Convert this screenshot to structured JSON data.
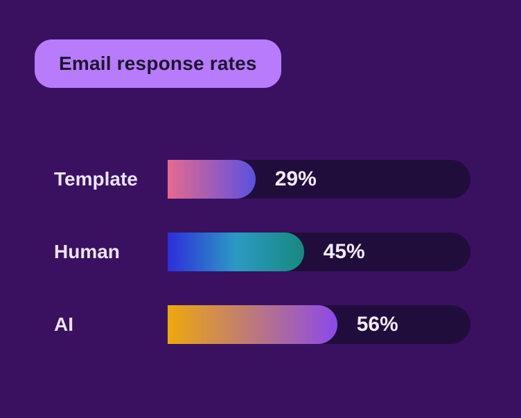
{
  "page": {
    "background": "#3a1161"
  },
  "header": {
    "title": "Email response rates",
    "badge_bg": "#b77bfb",
    "badge_text_color": "#1f1533"
  },
  "chart_data": {
    "type": "bar",
    "orientation": "horizontal",
    "title": "Email response rates",
    "categories": [
      "Template",
      "Human",
      "AI"
    ],
    "values": [
      29,
      45,
      56
    ],
    "value_labels": [
      "29%",
      "45%",
      "56%"
    ],
    "xlim": [
      0,
      100
    ],
    "grid": false,
    "legend": false,
    "track_color": "#210d3c",
    "label_color": "#eae3f5",
    "value_color": "#f2ecfb",
    "bar_gradients": [
      [
        "#e56a8e",
        "#5b50e0"
      ],
      [
        "#2d2ed9",
        "#2b9ac4",
        "#17897f"
      ],
      [
        "#eda80c",
        "#8c49ea"
      ]
    ]
  },
  "layout": {
    "row_top_start": 231,
    "row_step": 105
  }
}
